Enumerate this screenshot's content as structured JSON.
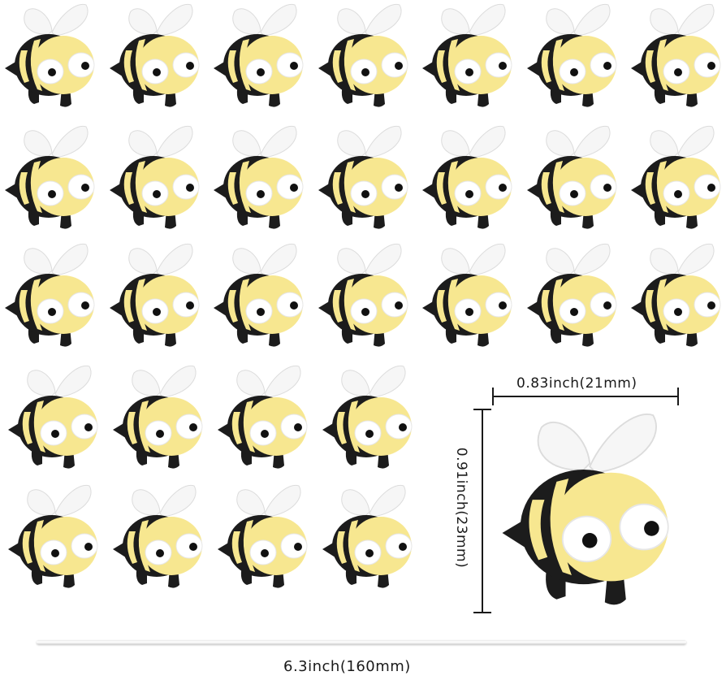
{
  "image": {
    "subject": "yellow-and-black bee resin charms",
    "colors": {
      "body": "#f7e790",
      "stripe": "#1c1c1c",
      "wing": "#f6f6f6",
      "eye_white": "#ffffff",
      "pupil": "#111111"
    }
  },
  "dimensions": {
    "width_label": "0.83inch(21mm)",
    "height_label": "0.91inch(23mm)",
    "cord_label": "6.3inch(160mm)"
  }
}
